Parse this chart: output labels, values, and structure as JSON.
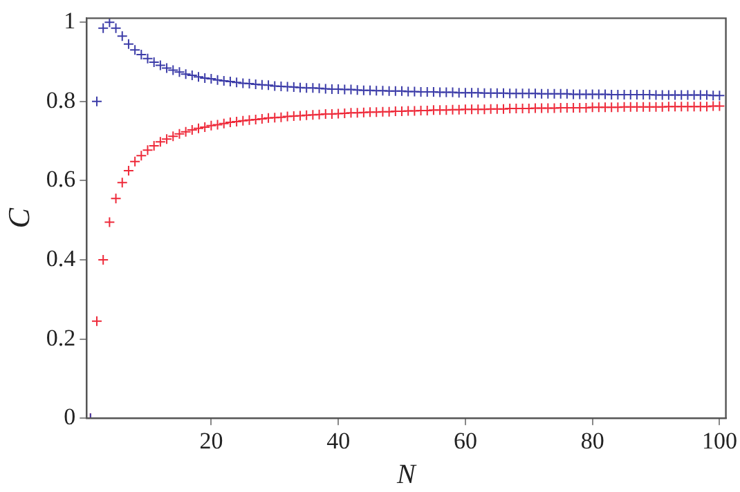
{
  "chart_data": {
    "type": "scatter",
    "xlabel": "N",
    "ylabel": "C",
    "marker": "cross",
    "grid": false,
    "xlim": [
      0.4,
      101
    ],
    "ylim": [
      0,
      1.01
    ],
    "xticks": [
      20,
      40,
      60,
      80,
      100
    ],
    "yticks": [
      0,
      0.2,
      0.4,
      0.6,
      0.8,
      1
    ],
    "x": [
      1,
      2,
      3,
      4,
      5,
      6,
      7,
      8,
      9,
      10,
      11,
      12,
      13,
      14,
      15,
      16,
      17,
      18,
      19,
      20,
      21,
      22,
      23,
      24,
      25,
      26,
      27,
      28,
      29,
      30,
      31,
      32,
      33,
      34,
      35,
      36,
      37,
      38,
      39,
      40,
      41,
      42,
      43,
      44,
      45,
      46,
      47,
      48,
      49,
      50,
      51,
      52,
      53,
      54,
      55,
      56,
      57,
      58,
      59,
      60,
      61,
      62,
      63,
      64,
      65,
      66,
      67,
      68,
      69,
      70,
      71,
      72,
      73,
      74,
      75,
      76,
      77,
      78,
      79,
      80,
      81,
      82,
      83,
      84,
      85,
      86,
      87,
      88,
      89,
      90,
      91,
      92,
      93,
      94,
      95,
      96,
      97,
      98,
      99,
      100
    ],
    "series": [
      {
        "color": "#3c3ca8",
        "values": [
          0,
          0.8,
          0.985,
          1.0,
          0.985,
          0.965,
          0.945,
          0.93,
          0.918,
          0.908,
          0.899,
          0.891,
          0.884,
          0.879,
          0.874,
          0.869,
          0.866,
          0.862,
          0.859,
          0.857,
          0.854,
          0.852,
          0.85,
          0.848,
          0.846,
          0.845,
          0.843,
          0.842,
          0.841,
          0.839,
          0.838,
          0.837,
          0.836,
          0.835,
          0.834,
          0.834,
          0.833,
          0.832,
          0.831,
          0.831,
          0.83,
          0.83,
          0.829,
          0.828,
          0.828,
          0.827,
          0.827,
          0.826,
          0.826,
          0.826,
          0.825,
          0.825,
          0.824,
          0.824,
          0.824,
          0.823,
          0.823,
          0.823,
          0.822,
          0.822,
          0.822,
          0.822,
          0.821,
          0.821,
          0.821,
          0.821,
          0.82,
          0.82,
          0.82,
          0.82,
          0.82,
          0.819,
          0.819,
          0.819,
          0.819,
          0.819,
          0.818,
          0.818,
          0.818,
          0.818,
          0.818,
          0.818,
          0.817,
          0.817,
          0.817,
          0.817,
          0.817,
          0.817,
          0.817,
          0.816,
          0.816,
          0.816,
          0.816,
          0.816,
          0.816,
          0.816,
          0.816,
          0.816,
          0.815,
          0.815
        ]
      },
      {
        "color": "#ee2a3a",
        "values": [
          0,
          0.245,
          0.4,
          0.495,
          0.555,
          0.595,
          0.625,
          0.648,
          0.663,
          0.677,
          0.688,
          0.698,
          0.705,
          0.712,
          0.718,
          0.723,
          0.728,
          0.732,
          0.735,
          0.739,
          0.741,
          0.744,
          0.747,
          0.749,
          0.751,
          0.753,
          0.754,
          0.756,
          0.758,
          0.759,
          0.76,
          0.762,
          0.763,
          0.764,
          0.765,
          0.766,
          0.767,
          0.768,
          0.768,
          0.769,
          0.77,
          0.771,
          0.771,
          0.772,
          0.773,
          0.773,
          0.774,
          0.774,
          0.775,
          0.775,
          0.776,
          0.776,
          0.777,
          0.777,
          0.778,
          0.778,
          0.778,
          0.779,
          0.779,
          0.78,
          0.78,
          0.78,
          0.78,
          0.781,
          0.781,
          0.781,
          0.782,
          0.782,
          0.782,
          0.782,
          0.783,
          0.783,
          0.783,
          0.783,
          0.784,
          0.784,
          0.784,
          0.784,
          0.784,
          0.785,
          0.785,
          0.785,
          0.785,
          0.785,
          0.786,
          0.786,
          0.786,
          0.786,
          0.786,
          0.786,
          0.786,
          0.787,
          0.787,
          0.787,
          0.787,
          0.787,
          0.787,
          0.787,
          0.788,
          0.788
        ]
      }
    ]
  }
}
